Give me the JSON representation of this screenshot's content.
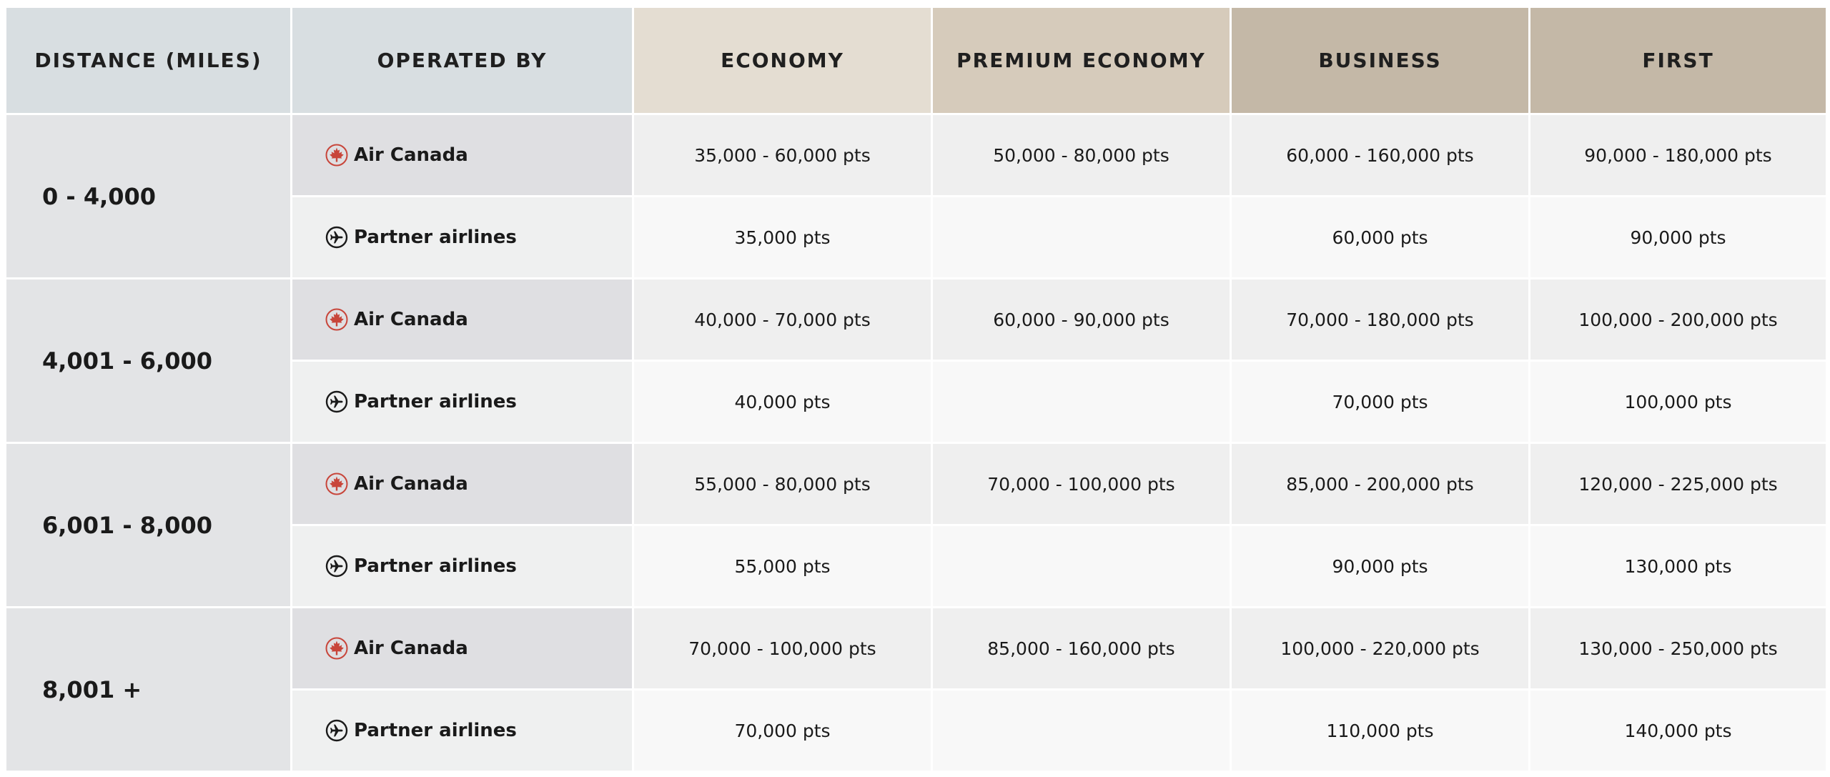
{
  "table": {
    "headers": {
      "distance": "DISTANCE (MILES)",
      "operator": "OPERATED BY",
      "economy": "ECONOMY",
      "premium_economy": "PREMIUM ECONOMY",
      "business": "BUSINESS",
      "first": "FIRST"
    },
    "bands": [
      {
        "distance": "0 - 4,000",
        "air_canada": {
          "operator": "Air Canada",
          "economy": "35,000 - 60,000 pts",
          "premium_economy": "50,000 - 80,000 pts",
          "business": "60,000 - 160,000 pts",
          "first": "90,000 - 180,000 pts"
        },
        "partner": {
          "operator": "Partner airlines",
          "economy": "35,000 pts",
          "premium_economy": "",
          "business": "60,000 pts",
          "first": "90,000 pts"
        }
      },
      {
        "distance": "4,001 - 6,000",
        "air_canada": {
          "operator": "Air Canada",
          "economy": "40,000 - 70,000 pts",
          "premium_economy": "60,000 - 90,000 pts",
          "business": "70,000 - 180,000 pts",
          "first": "100,000 - 200,000 pts"
        },
        "partner": {
          "operator": "Partner airlines",
          "economy": "40,000 pts",
          "premium_economy": "",
          "business": "70,000 pts",
          "first": "100,000 pts"
        }
      },
      {
        "distance": "6,001 - 8,000",
        "air_canada": {
          "operator": "Air Canada",
          "economy": "55,000 - 80,000 pts",
          "premium_economy": "70,000 - 100,000 pts",
          "business": "85,000 - 200,000 pts",
          "first": "120,000 - 225,000 pts"
        },
        "partner": {
          "operator": "Partner airlines",
          "economy": "55,000 pts",
          "premium_economy": "",
          "business": "90,000 pts",
          "first": "130,000 pts"
        }
      },
      {
        "distance": "8,001 +",
        "air_canada": {
          "operator": "Air Canada",
          "economy": "70,000 - 100,000 pts",
          "premium_economy": "85,000 - 160,000 pts",
          "business": "100,000 - 220,000 pts",
          "first": "130,000 - 250,000 pts"
        },
        "partner": {
          "operator": "Partner airlines",
          "economy": "70,000 pts",
          "premium_economy": "",
          "business": "110,000 pts",
          "first": "140,000 pts"
        }
      }
    ]
  },
  "icons": {
    "air_canada": "maple-leaf-icon",
    "partner": "airplane-icon"
  },
  "colors": {
    "air_canada_red": "#c8453a",
    "header_grey": "#d8dee1",
    "header_economy": "#e4ddd2",
    "header_premium": "#d6cbbb",
    "header_business_first": "#c4b8a7"
  }
}
